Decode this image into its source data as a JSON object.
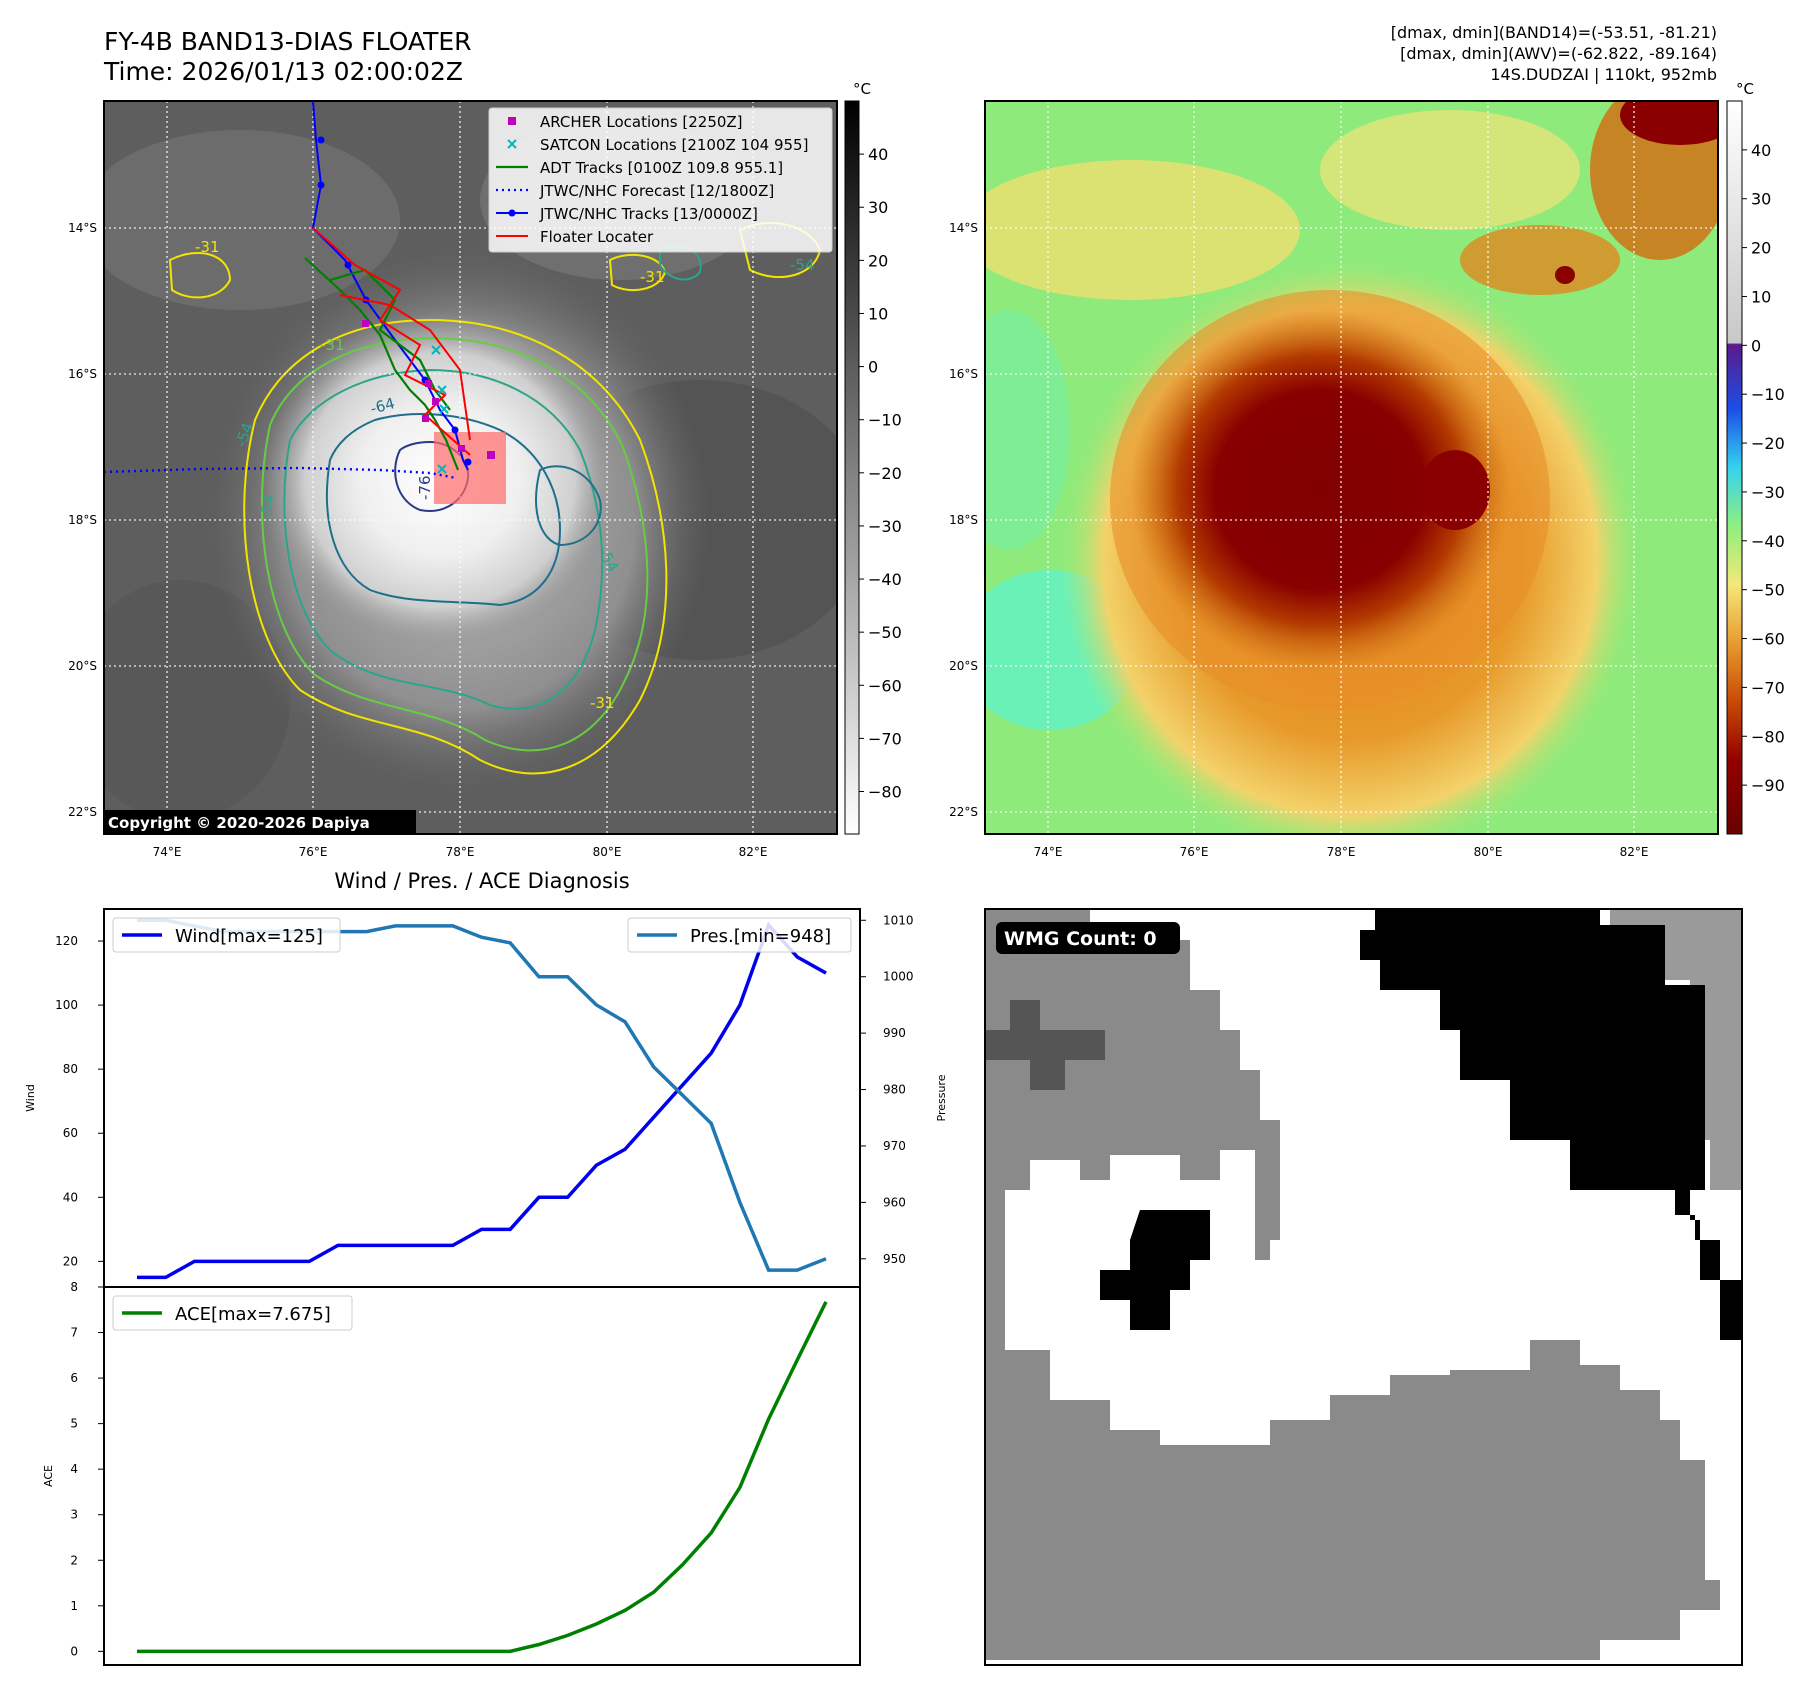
{
  "header": {
    "title_line1": "FY-4B BAND13-DIAS FLOATER",
    "title_line2": "Time: 2026/01/13 02:00:02Z",
    "info_line1": "[dmax, dmin](BAND14)=(-53.51, -81.21)",
    "info_line2": "[dmax, dmin](AWV)=(-62.822, -89.164)",
    "info_line3": "14S.DUDZAI | 110kt, 952mb"
  },
  "map": {
    "lon_ticks": [
      "74°E",
      "76°E",
      "78°E",
      "80°E",
      "82°E"
    ],
    "lat_ticks": [
      "14°S",
      "16°S",
      "18°S",
      "20°S",
      "22°S"
    ],
    "copyright": "Copyright © 2020-2026 Dapiya",
    "contour_labels": [
      "-31",
      "-31",
      "-31",
      "-31",
      "-54",
      "-54",
      "-54",
      "-54",
      "-64",
      "-76"
    ],
    "legend": [
      {
        "label": "ARCHER Locations [2250Z]",
        "color": "#c000c0",
        "marker": "square"
      },
      {
        "label": "SATCON Locations [2100Z 104 955]",
        "color": "#00b8b8",
        "marker": "x"
      },
      {
        "label": "ADT Tracks [0100Z 109.8 955.1]",
        "color": "#008000",
        "marker": "line"
      },
      {
        "label": "JTWC/NHC Forecast [12/1800Z]",
        "color": "#0000ff",
        "marker": "dotted"
      },
      {
        "label": "JTWC/NHC Tracks [13/0000Z]",
        "color": "#0000ff",
        "marker": "line-dot"
      },
      {
        "label": "Floater Locater",
        "color": "#ff0000",
        "marker": "line"
      }
    ]
  },
  "colorbar_left": {
    "unit": "°C",
    "ticks": [
      "40",
      "30",
      "20",
      "10",
      "0",
      "−10",
      "−20",
      "−30",
      "−40",
      "−50",
      "−60",
      "−70",
      "−80"
    ]
  },
  "colorbar_right": {
    "unit": "°C",
    "ticks": [
      "40",
      "30",
      "20",
      "10",
      "0",
      "−10",
      "−20",
      "−30",
      "−40",
      "−50",
      "−60",
      "−70",
      "−80",
      "−90"
    ]
  },
  "wmg": {
    "label": "WMG Count: 0"
  },
  "chart_data": [
    {
      "type": "line",
      "title": "Wind / Pres. / ACE Diagnosis",
      "ylabel": "Wind",
      "y2label": "Pressure",
      "ylim": [
        12,
        130
      ],
      "y2lim": [
        945,
        1012
      ],
      "y_ticks": [
        "20",
        "40",
        "60",
        "80",
        "100",
        "120"
      ],
      "y2_ticks": [
        "950",
        "960",
        "970",
        "980",
        "990",
        "1000",
        "1010"
      ],
      "series": [
        {
          "name": "Wind[max=125]",
          "axis": "left",
          "color": "#0000ee",
          "values": [
            15,
            15,
            20,
            20,
            20,
            20,
            20,
            25,
            25,
            25,
            25,
            25,
            30,
            30,
            40,
            40,
            50,
            55,
            65,
            75,
            85,
            100,
            125,
            115,
            110
          ]
        },
        {
          "name": "Pres.[min=948]",
          "axis": "right",
          "color": "#1f77b4",
          "values": [
            1010,
            1010,
            1009,
            1008,
            1008,
            1008,
            1008,
            1008,
            1008,
            1009,
            1009,
            1009,
            1007,
            1006,
            1000,
            1000,
            995,
            992,
            984,
            979,
            974,
            960,
            948,
            948,
            950
          ]
        }
      ]
    },
    {
      "type": "line",
      "ylabel": "ACE",
      "ylim": [
        -0.3,
        8
      ],
      "y_ticks": [
        "0",
        "1",
        "2",
        "3",
        "4",
        "5",
        "6",
        "7",
        "8"
      ],
      "series": [
        {
          "name": "ACE[max=7.675]",
          "color": "#008000",
          "values": [
            0,
            0,
            0,
            0,
            0,
            0,
            0,
            0,
            0,
            0,
            0,
            0,
            0,
            0,
            0.15,
            0.35,
            0.6,
            0.9,
            1.3,
            1.9,
            2.6,
            3.6,
            5.1,
            6.4,
            7.675
          ]
        }
      ]
    }
  ]
}
